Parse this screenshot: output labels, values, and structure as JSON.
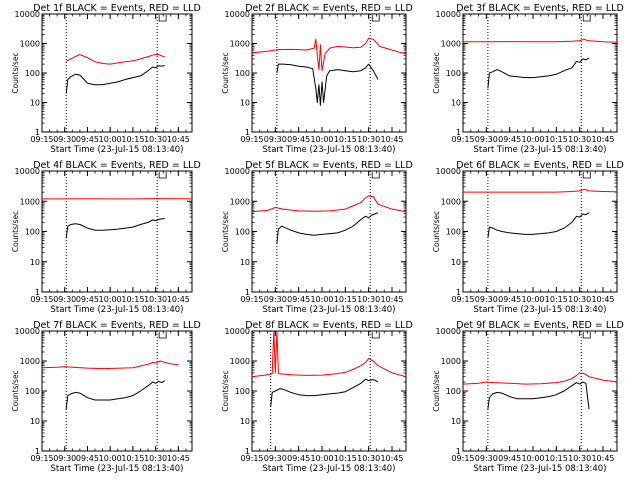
{
  "figure": {
    "xlabel": "Start Time (23-Jul-15 08:13:40)",
    "ylabel": "Counts/sec"
  },
  "chart_data": [
    {
      "type": "line",
      "title": "Det 1f BLACK = Events, RED = LLD",
      "xlabel": "Start Time (23-Jul-15 08:13:40)",
      "ylabel": "Counts/sec",
      "ylim": [
        1,
        10000
      ],
      "yscale": "log",
      "xlim": [
        "09:15",
        "10:54"
      ],
      "x_ticks": [
        "09:15",
        "09:30",
        "09:45",
        "10:00",
        "10:15",
        "10:30",
        "10:45"
      ],
      "y_ticks": [
        "1",
        "10",
        "100",
        "1000",
        "10000"
      ],
      "vlines": [
        "09:31",
        "10:31"
      ],
      "series": [
        {
          "color": "#ff0000",
          "x": [
            "09:31",
            "09:35",
            "09:40",
            "09:45",
            "09:50",
            "09:55",
            "10:00",
            "10:05",
            "10:10",
            "10:15",
            "10:20",
            "10:25",
            "10:28",
            "10:30",
            "10:32",
            "10:34",
            "10:36"
          ],
          "y": [
            250,
            320,
            420,
            330,
            240,
            210,
            200,
            220,
            240,
            260,
            300,
            360,
            400,
            430,
            420,
            380,
            350
          ]
        },
        {
          "color": "#000000",
          "x": [
            "09:31",
            "09:32",
            "09:34",
            "09:37",
            "09:40",
            "09:45",
            "09:50",
            "09:55",
            "10:00",
            "10:05",
            "10:10",
            "10:15",
            "10:20",
            "10:25",
            "10:28",
            "10:30",
            "10:32",
            "10:34",
            "10:36"
          ],
          "y": [
            20,
            60,
            75,
            90,
            85,
            45,
            40,
            40,
            45,
            50,
            60,
            70,
            80,
            120,
            160,
            150,
            175,
            170,
            180
          ]
        }
      ]
    },
    {
      "type": "line",
      "title": "Det 2f BLACK = Events, RED = LLD",
      "xlabel": "Start Time (23-Jul-15 08:13:40)",
      "ylabel": "Counts/sec",
      "ylim": [
        1,
        10000
      ],
      "yscale": "log",
      "xlim": [
        "09:15",
        "10:54"
      ],
      "x_ticks": [
        "09:15",
        "09:30",
        "09:45",
        "10:00",
        "10:15",
        "10:30",
        "10:45"
      ],
      "y_ticks": [
        "1",
        "10",
        "100",
        "1000",
        "10000"
      ],
      "vlines": [
        "09:31",
        "10:31"
      ],
      "series": [
        {
          "color": "#ff0000",
          "x": [
            "09:15",
            "09:25",
            "09:30",
            "09:32",
            "09:40",
            "09:50",
            "09:55",
            "09:56",
            "09:57",
            "09:58",
            "09:59",
            "10:00",
            "10:02",
            "10:05",
            "10:10",
            "10:20",
            "10:25",
            "10:28",
            "10:30",
            "10:33",
            "10:37",
            "10:45",
            "10:50",
            "10:54"
          ],
          "y": [
            480,
            550,
            600,
            620,
            630,
            600,
            700,
            1400,
            400,
            130,
            900,
            120,
            450,
            700,
            800,
            720,
            750,
            1000,
            1500,
            1400,
            800,
            600,
            500,
            450
          ]
        },
        {
          "color": "#000000",
          "x": [
            "09:31",
            "09:32",
            "09:35",
            "09:40",
            "09:45",
            "09:50",
            "09:54",
            "09:56",
            "09:57",
            "09:58",
            "09:59",
            "10:00",
            "10:01",
            "10:03",
            "10:05",
            "10:10",
            "10:15",
            "10:20",
            "10:25",
            "10:28",
            "10:30",
            "10:33",
            "10:36"
          ],
          "y": [
            100,
            200,
            200,
            190,
            170,
            160,
            140,
            30,
            10,
            40,
            8,
            50,
            10,
            80,
            120,
            130,
            120,
            110,
            120,
            150,
            200,
            120,
            60
          ]
        }
      ]
    },
    {
      "type": "line",
      "title": "Det 3f BLACK = Events, RED = LLD",
      "xlabel": "Start Time (23-Jul-15 08:13:40)",
      "ylabel": "Counts/sec",
      "ylim": [
        1,
        10000
      ],
      "yscale": "log",
      "xlim": [
        "09:15",
        "10:54"
      ],
      "x_ticks": [
        "09:15",
        "09:30",
        "09:45",
        "10:00",
        "10:15",
        "10:30",
        "10:45"
      ],
      "y_ticks": [
        "1",
        "10",
        "100",
        "1000",
        "10000"
      ],
      "vlines": [
        "09:31",
        "10:31"
      ],
      "series": [
        {
          "color": "#ff0000",
          "x": [
            "09:15",
            "09:30",
            "09:45",
            "10:00",
            "10:15",
            "10:25",
            "10:30",
            "10:33",
            "10:35",
            "10:45",
            "10:54"
          ],
          "y": [
            1150,
            1150,
            1160,
            1150,
            1150,
            1200,
            1250,
            1400,
            1250,
            1150,
            1100
          ]
        },
        {
          "color": "#000000",
          "x": [
            "09:31",
            "09:32",
            "09:34",
            "09:37",
            "09:40",
            "09:45",
            "09:50",
            "09:55",
            "10:00",
            "10:05",
            "10:10",
            "10:15",
            "10:20",
            "10:25",
            "10:28",
            "10:30",
            "10:32",
            "10:34",
            "10:36"
          ],
          "y": [
            30,
            100,
            110,
            130,
            110,
            80,
            75,
            70,
            70,
            75,
            80,
            90,
            120,
            150,
            250,
            230,
            300,
            280,
            320
          ]
        }
      ]
    },
    {
      "type": "line",
      "title": "Det 4f BLACK = Events, RED = LLD",
      "xlabel": "Start Time (23-Jul-15 08:13:40)",
      "ylabel": "Counts/sec",
      "ylim": [
        1,
        10000
      ],
      "yscale": "log",
      "xlim": [
        "09:15",
        "10:54"
      ],
      "x_ticks": [
        "09:15",
        "09:30",
        "09:45",
        "10:00",
        "10:15",
        "10:30",
        "10:45"
      ],
      "y_ticks": [
        "1",
        "10",
        "100",
        "1000",
        "10000"
      ],
      "vlines": [
        "09:31",
        "10:31"
      ],
      "series": [
        {
          "color": "#ff0000",
          "x": [
            "09:15",
            "09:30",
            "09:45",
            "10:00",
            "10:15",
            "10:30",
            "10:45",
            "10:54"
          ],
          "y": [
            1200,
            1200,
            1210,
            1200,
            1200,
            1220,
            1210,
            1200
          ]
        },
        {
          "color": "#000000",
          "x": [
            "09:31",
            "09:32",
            "09:34",
            "09:37",
            "09:40",
            "09:45",
            "09:50",
            "09:55",
            "10:00",
            "10:05",
            "10:10",
            "10:15",
            "10:20",
            "10:25",
            "10:28",
            "10:30",
            "10:32",
            "10:34",
            "10:36"
          ],
          "y": [
            60,
            150,
            170,
            180,
            170,
            130,
            110,
            110,
            115,
            120,
            130,
            140,
            170,
            200,
            240,
            230,
            250,
            260,
            270
          ]
        }
      ]
    },
    {
      "type": "line",
      "title": "Det 5f BLACK = Events, RED = LLD",
      "xlabel": "Start Time (23-Jul-15 08:13:40)",
      "ylabel": "Counts/sec",
      "ylim": [
        1,
        10000
      ],
      "yscale": "log",
      "xlim": [
        "09:15",
        "10:54"
      ],
      "x_ticks": [
        "09:15",
        "09:30",
        "09:45",
        "10:00",
        "10:15",
        "10:30",
        "10:45"
      ],
      "y_ticks": [
        "1",
        "10",
        "100",
        "1000",
        "10000"
      ],
      "vlines": [
        "09:31",
        "10:31"
      ],
      "series": [
        {
          "color": "#ff0000",
          "x": [
            "09:15",
            "09:25",
            "09:30",
            "09:35",
            "09:45",
            "09:55",
            "10:05",
            "10:15",
            "10:20",
            "10:25",
            "10:28",
            "10:30",
            "10:33",
            "10:36",
            "10:45",
            "10:54"
          ],
          "y": [
            450,
            500,
            620,
            550,
            480,
            470,
            480,
            550,
            700,
            900,
            1300,
            1500,
            1400,
            800,
            550,
            450
          ]
        },
        {
          "color": "#000000",
          "x": [
            "09:31",
            "09:32",
            "09:34",
            "09:37",
            "09:40",
            "09:45",
            "09:50",
            "09:55",
            "10:00",
            "10:05",
            "10:10",
            "10:15",
            "10:20",
            "10:25",
            "10:28",
            "10:30",
            "10:32",
            "10:34",
            "10:36"
          ],
          "y": [
            40,
            120,
            150,
            130,
            110,
            90,
            80,
            75,
            80,
            85,
            90,
            110,
            150,
            250,
            320,
            280,
            350,
            380,
            420
          ]
        }
      ]
    },
    {
      "type": "line",
      "title": "Det 6f BLACK = Events, RED = LLD",
      "xlabel": "Start Time (23-Jul-15 08:13:40)",
      "ylabel": "Counts/sec",
      "ylim": [
        1,
        10000
      ],
      "yscale": "log",
      "xlim": [
        "09:15",
        "10:54"
      ],
      "x_ticks": [
        "09:15",
        "09:30",
        "09:45",
        "10:00",
        "10:15",
        "10:30",
        "10:45"
      ],
      "y_ticks": [
        "1",
        "10",
        "100",
        "1000",
        "10000"
      ],
      "vlines": [
        "09:31",
        "10:31"
      ],
      "series": [
        {
          "color": "#ff0000",
          "x": [
            "09:15",
            "09:30",
            "09:45",
            "10:00",
            "10:15",
            "10:25",
            "10:30",
            "10:33",
            "10:36",
            "10:45",
            "10:54"
          ],
          "y": [
            2000,
            2000,
            2000,
            2000,
            2000,
            2100,
            2200,
            2500,
            2200,
            2100,
            2050
          ]
        },
        {
          "color": "#000000",
          "x": [
            "09:31",
            "09:32",
            "09:34",
            "09:37",
            "09:40",
            "09:45",
            "09:50",
            "09:55",
            "10:00",
            "10:05",
            "10:10",
            "10:15",
            "10:20",
            "10:25",
            "10:28",
            "10:30",
            "10:32",
            "10:34",
            "10:36"
          ],
          "y": [
            60,
            140,
            130,
            110,
            100,
            90,
            85,
            80,
            80,
            85,
            90,
            100,
            130,
            200,
            320,
            300,
            380,
            360,
            420
          ]
        }
      ]
    },
    {
      "type": "line",
      "title": "Det 7f BLACK = Events, RED = LLD",
      "xlabel": "Start Time (23-Jul-15 08:13:40)",
      "ylabel": "Counts/sec",
      "ylim": [
        1,
        10000
      ],
      "yscale": "log",
      "xlim": [
        "09:15",
        "10:54"
      ],
      "x_ticks": [
        "09:15",
        "09:30",
        "09:45",
        "10:00",
        "10:15",
        "10:30",
        "10:45"
      ],
      "y_ticks": [
        "1",
        "10",
        "100",
        "1000",
        "10000"
      ],
      "vlines": [
        "09:31",
        "10:31"
      ],
      "series": [
        {
          "color": "#ff0000",
          "x": [
            "09:15",
            "09:25",
            "09:30",
            "09:35",
            "09:45",
            "09:55",
            "10:05",
            "10:15",
            "10:20",
            "10:25",
            "10:28",
            "10:30",
            "10:33",
            "10:36",
            "10:40",
            "10:45"
          ],
          "y": [
            600,
            620,
            650,
            620,
            580,
            560,
            570,
            600,
            680,
            780,
            900,
            850,
            1000,
            900,
            800,
            750
          ]
        },
        {
          "color": "#000000",
          "x": [
            "09:31",
            "09:32",
            "09:34",
            "09:37",
            "09:40",
            "09:45",
            "09:50",
            "09:55",
            "10:00",
            "10:05",
            "10:10",
            "10:15",
            "10:20",
            "10:25",
            "10:28",
            "10:30",
            "10:32",
            "10:34",
            "10:36"
          ],
          "y": [
            25,
            70,
            80,
            90,
            85,
            60,
            50,
            50,
            50,
            55,
            60,
            70,
            100,
            150,
            200,
            180,
            210,
            190,
            220
          ]
        }
      ]
    },
    {
      "type": "line",
      "title": "Det 8f BLACK = Events, RED = LLD",
      "xlabel": "Start Time (23-Jul-15 08:13:40)",
      "ylabel": "Counts/sec",
      "ylim": [
        1,
        10000
      ],
      "yscale": "log",
      "xlim": [
        "09:15",
        "10:54"
      ],
      "x_ticks": [
        "09:15",
        "09:30",
        "09:45",
        "10:00",
        "10:15",
        "10:30",
        "10:45"
      ],
      "y_ticks": [
        "1",
        "10",
        "100",
        "1000",
        "10000"
      ],
      "vlines": [
        "09:27",
        "10:31"
      ],
      "series": [
        {
          "color": "#ff0000",
          "x": [
            "09:15",
            "09:20",
            "09:25",
            "09:28",
            "09:29",
            "09:30",
            "09:31",
            "09:32",
            "09:40",
            "09:50",
            "10:00",
            "10:10",
            "10:15",
            "10:20",
            "10:25",
            "10:28",
            "10:30",
            "10:33",
            "10:36",
            "10:45",
            "10:54"
          ],
          "y": [
            300,
            320,
            350,
            380,
            10000,
            400,
            10000,
            380,
            350,
            330,
            340,
            380,
            420,
            520,
            700,
            900,
            1200,
            1000,
            700,
            400,
            300
          ]
        },
        {
          "color": "#000000",
          "x": [
            "09:27",
            "09:28",
            "09:30",
            "09:33",
            "09:36",
            "09:40",
            "09:45",
            "09:50",
            "09:55",
            "10:00",
            "10:05",
            "10:10",
            "10:15",
            "10:20",
            "10:25",
            "10:28",
            "10:30",
            "10:32",
            "10:34",
            "10:36"
          ],
          "y": [
            30,
            90,
            100,
            120,
            110,
            90,
            75,
            70,
            70,
            75,
            80,
            85,
            95,
            130,
            180,
            250,
            220,
            240,
            230,
            200
          ]
        }
      ]
    },
    {
      "type": "line",
      "title": "Det 9f BLACK = Events, RED = LLD",
      "xlabel": "Start Time (23-Jul-15 08:13:40)",
      "ylabel": "Counts/sec",
      "ylim": [
        1,
        10000
      ],
      "yscale": "log",
      "xlim": [
        "09:15",
        "10:54"
      ],
      "x_ticks": [
        "09:15",
        "09:30",
        "09:45",
        "10:00",
        "10:15",
        "10:30",
        "10:45"
      ],
      "y_ticks": [
        "1",
        "10",
        "100",
        "1000",
        "10000"
      ],
      "vlines": [
        "09:31",
        "10:31"
      ],
      "series": [
        {
          "color": "#ff0000",
          "x": [
            "09:15",
            "09:25",
            "09:30",
            "09:35",
            "09:45",
            "09:55",
            "10:05",
            "10:15",
            "10:20",
            "10:25",
            "10:28",
            "10:30",
            "10:33",
            "10:36",
            "10:45",
            "10:54"
          ],
          "y": [
            170,
            180,
            200,
            190,
            180,
            170,
            175,
            190,
            210,
            260,
            330,
            400,
            380,
            300,
            230,
            200
          ]
        },
        {
          "color": "#000000",
          "x": [
            "09:31",
            "09:32",
            "09:34",
            "09:37",
            "09:40",
            "09:45",
            "09:50",
            "09:55",
            "10:00",
            "10:05",
            "10:10",
            "10:15",
            "10:20",
            "10:25",
            "10:28",
            "10:30",
            "10:32",
            "10:34",
            "10:36"
          ],
          "y": [
            25,
            60,
            80,
            90,
            85,
            65,
            55,
            55,
            55,
            60,
            65,
            75,
            100,
            150,
            190,
            170,
            200,
            180,
            25
          ]
        }
      ]
    }
  ]
}
